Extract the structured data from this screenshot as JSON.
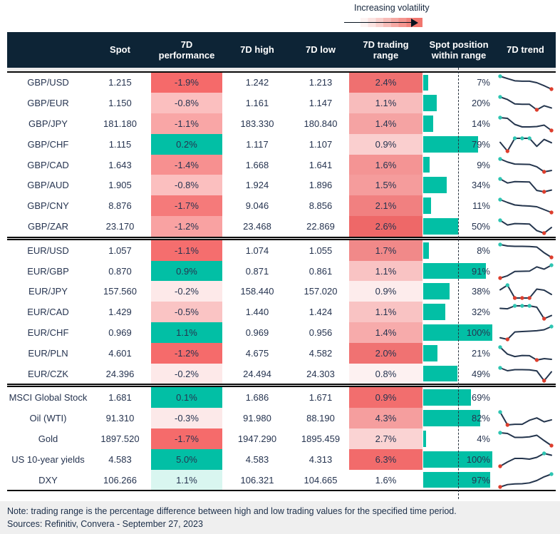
{
  "legend": {
    "label": "Increasing volatility"
  },
  "header": {
    "columns": [
      "",
      "Spot",
      "7D performance",
      "7D high",
      "7D low",
      "7D trading range",
      "Spot position within range",
      "7D trend"
    ]
  },
  "footer": {
    "note": "Note: trading range is the percentage difference between high and low trading values for the specified time period.",
    "sources": "Sources: Refinitiv, Convera - September 27, 2023"
  },
  "colors": {
    "accent_teal": "#02bfa5",
    "header_bg": "#0d2436",
    "text_navy": "#263450",
    "spark_line": "#24354d",
    "spark_high": "#2ec5b2",
    "spark_low": "#dd3e2d"
  },
  "chart_data": {
    "type": "table",
    "columns": [
      "",
      "Spot",
      "7D performance",
      "7D high",
      "7D low",
      "7D trading range",
      "Spot position within range",
      "7D trend"
    ],
    "sections": [
      {
        "rows": [
          {
            "label": "GBP/USD",
            "spot": "1.215",
            "perf": "-1.9%",
            "perf_bg": "#f56a6a",
            "high": "1.242",
            "low": "1.213",
            "range": "2.4%",
            "range_bg": "#ef7070",
            "position_pct": 7,
            "position_label": "7%",
            "spark": [
              10,
              8.8,
              7.6,
              7.4,
              7.4,
              6.6,
              5.0,
              3.2
            ]
          },
          {
            "label": "GBP/EUR",
            "spot": "1.150",
            "perf": "-0.8%",
            "perf_bg": "#fbbfbf",
            "high": "1.161",
            "low": "1.147",
            "range": "1.1%",
            "range_bg": "#f8bcbc",
            "position_pct": 20,
            "position_label": "20%",
            "spark": [
              10,
              8.6,
              6.2,
              6.0,
              6.0,
              3.0,
              5.2,
              4.0
            ]
          },
          {
            "label": "GBP/JPY",
            "spot": "181.180",
            "perf": "-1.1%",
            "perf_bg": "#f9a6a6",
            "high": "183.330",
            "low": "180.840",
            "range": "1.4%",
            "range_bg": "#f5a3a3",
            "position_pct": 14,
            "position_label": "14%",
            "spark": [
              9.8,
              9.4,
              6.0,
              4.6,
              4.6,
              4.8,
              5.6,
              2.6
            ]
          },
          {
            "label": "GBP/CHF",
            "spot": "1.115",
            "perf": "0.2%",
            "perf_bg": "#02bfa5",
            "high": "1.117",
            "low": "1.107",
            "range": "0.9%",
            "range_bg": "#facfcf",
            "position_pct": 79,
            "position_label": "79%",
            "spark": [
              5.8,
              1.0,
              8.0,
              8.0,
              8.0,
              3.6,
              7.4,
              5.6
            ]
          },
          {
            "label": "GBP/CAD",
            "spot": "1.643",
            "perf": "-1.4%",
            "perf_bg": "#f79090",
            "high": "1.668",
            "low": "1.641",
            "range": "1.6%",
            "range_bg": "#f49494",
            "position_pct": 9,
            "position_label": "9%",
            "spark": [
              10,
              8.2,
              7.0,
              6.9,
              6.8,
              5.4,
              2.4,
              3.2
            ]
          },
          {
            "label": "GBP/AUD",
            "spot": "1.905",
            "perf": "-0.8%",
            "perf_bg": "#fbbfbf",
            "high": "1.924",
            "low": "1.896",
            "range": "1.5%",
            "range_bg": "#f59c9c",
            "position_pct": 34,
            "position_label": "34%",
            "spark": [
              10,
              7.6,
              8.4,
              8.3,
              8.2,
              3.2,
              2.4,
              3.4
            ]
          },
          {
            "label": "GBP/CNY",
            "spot": "8.876",
            "perf": "-1.7%",
            "perf_bg": "#f57a7a",
            "high": "9.046",
            "low": "8.856",
            "range": "2.1%",
            "range_bg": "#f18080",
            "position_pct": 11,
            "position_label": "11%",
            "spark": [
              10,
              8.4,
              7.0,
              6.6,
              6.4,
              6.0,
              4.4,
              2.8
            ]
          },
          {
            "label": "GBP/ZAR",
            "spot": "23.170",
            "perf": "-1.2%",
            "perf_bg": "#f9a2a2",
            "high": "23.468",
            "low": "22.869",
            "range": "2.6%",
            "range_bg": "#ee6868",
            "position_pct": 50,
            "position_label": "50%",
            "spark": [
              10,
              7.0,
              7.9,
              7.8,
              7.6,
              3.4,
              1.8,
              5.4
            ]
          }
        ]
      },
      {
        "rows": [
          {
            "label": "EUR/USD",
            "spot": "1.057",
            "perf": "-1.1%",
            "perf_bg": "#f56e6e",
            "high": "1.074",
            "low": "1.055",
            "range": "1.7%",
            "range_bg": "#f18989",
            "position_pct": 8,
            "position_label": "8%",
            "spark": [
              10,
              9.2,
              9.0,
              9.0,
              8.9,
              8.6,
              5.4,
              2.8
            ]
          },
          {
            "label": "EUR/GBP",
            "spot": "0.870",
            "perf": "0.9%",
            "perf_bg": "#02bfa5",
            "high": "0.871",
            "low": "0.861",
            "range": "1.1%",
            "range_bg": "#f9c3c3",
            "position_pct": 91,
            "position_label": "91%",
            "spark": [
              1.4,
              2.8,
              5.4,
              5.5,
              5.6,
              8.2,
              6.8,
              9.2
            ]
          },
          {
            "label": "EUR/JPY",
            "spot": "157.560",
            "perf": "-0.2%",
            "perf_bg": "#fde9e9",
            "high": "158.440",
            "low": "157.020",
            "range": "0.9%",
            "range_bg": "#fdecec",
            "position_pct": 38,
            "position_label": "38%",
            "spark": [
              7.0,
              9.6,
              2.4,
              2.4,
              2.4,
              7.4,
              6.8,
              4.4
            ]
          },
          {
            "label": "EUR/CAD",
            "spot": "1.429",
            "perf": "-0.5%",
            "perf_bg": "#fac4c4",
            "high": "1.440",
            "low": "1.424",
            "range": "1.1%",
            "range_bg": "#f9c3c3",
            "position_pct": 32,
            "position_label": "32%",
            "spark": [
              6.4,
              6.2,
              7.5,
              7.5,
              7.5,
              6.9,
              1.8,
              3.2
            ]
          },
          {
            "label": "EUR/CHF",
            "spot": "0.969",
            "perf": "1.1%",
            "perf_bg": "#02bfa5",
            "high": "0.969",
            "low": "0.956",
            "range": "1.4%",
            "range_bg": "#f7abab",
            "position_pct": 100,
            "position_label": "100%",
            "spark": [
              2.4,
              1.4,
              6.0,
              6.3,
              6.5,
              6.8,
              7.4,
              9.4
            ]
          },
          {
            "label": "EUR/PLN",
            "spot": "4.601",
            "perf": "-1.2%",
            "perf_bg": "#f56b6b",
            "high": "4.675",
            "low": "4.582",
            "range": "2.0%",
            "range_bg": "#f07272",
            "position_pct": 21,
            "position_label": "21%",
            "spark": [
              10,
              6.0,
              4.6,
              5.2,
              5.1,
              2.6,
              3.4,
              3.0
            ]
          },
          {
            "label": "EUR/CZK",
            "spot": "24.396",
            "perf": "-0.2%",
            "perf_bg": "#fde9e9",
            "high": "24.494",
            "low": "24.303",
            "range": "0.8%",
            "range_bg": "#fdf1f1",
            "position_pct": 49,
            "position_label": "49%",
            "spark": [
              8.6,
              7.0,
              7.6,
              7.6,
              7.5,
              6.9,
              1.4,
              6.4
            ]
          }
        ]
      },
      {
        "rows": [
          {
            "label": "MSCI Global Stock",
            "spot": "1.681",
            "perf": "0.1%",
            "perf_bg": "#02bfa5",
            "high": "1.686",
            "low": "1.671",
            "range": "0.9%",
            "range_bg": "#f26e6e",
            "position_pct": 69,
            "position_label": "69%",
            "spark": null
          },
          {
            "label": "Oil (WTI)",
            "spot": "91.310",
            "perf": "-0.3%",
            "perf_bg": "#fce9e9",
            "high": "91.980",
            "low": "88.190",
            "range": "4.3%",
            "range_bg": "#f59e9e",
            "position_pct": 82,
            "position_label": "82%",
            "spark": [
              9.6,
              3.0,
              3.3,
              3.3,
              5.4,
              6.6,
              4.6,
              5.6
            ]
          },
          {
            "label": "Gold",
            "spot": "1897.520",
            "perf": "-1.7%",
            "perf_bg": "#f56b6b",
            "high": "1947.290",
            "low": "1895.459",
            "range": "2.7%",
            "range_bg": "#fad3d3",
            "position_pct": 4,
            "position_label": "4%",
            "spark": [
              9.6,
              9.2,
              7.0,
              7.0,
              7.3,
              8.2,
              5.2,
              2.4
            ]
          },
          {
            "label": "US 10-year yields",
            "spot": "4.583",
            "perf": "5.0%",
            "perf_bg": "#02bfa5",
            "high": "4.583",
            "low": "4.313",
            "range": "6.3%",
            "range_bg": "#f26b6b",
            "position_pct": 100,
            "position_label": "100%",
            "spark": [
              2.0,
              4.4,
              6.4,
              6.4,
              6.0,
              7.0,
              9.2,
              8.2
            ]
          },
          {
            "label": "DXY",
            "spot": "106.266",
            "perf": "1.1%",
            "perf_bg": "#d9f6f0",
            "high": "106.321",
            "low": "104.665",
            "range": "1.6%",
            "range_bg": "#ffffff",
            "position_pct": 97,
            "position_label": "97%",
            "spark": [
              1.6,
              3.0,
              3.4,
              3.5,
              4.0,
              5.4,
              7.6,
              9.2
            ]
          }
        ]
      }
    ]
  }
}
